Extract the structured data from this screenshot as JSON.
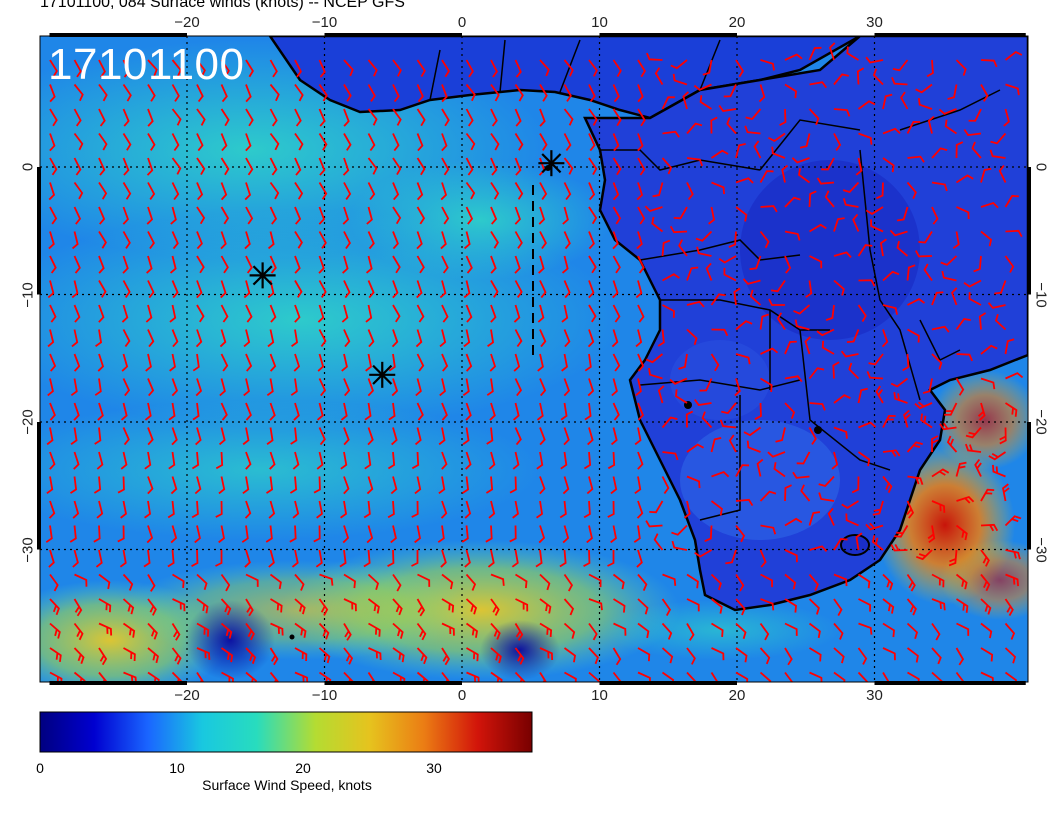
{
  "title": "17101100, 084 Surface winds (knots) -- NCEP GFS",
  "map_stamp": "17101100",
  "axes": {
    "lon_ticks": [
      "−20",
      "−10",
      "0",
      "10",
      "20",
      "30"
    ],
    "lat_ticks": [
      "0",
      "−10",
      "−20",
      "−30"
    ]
  },
  "colorbar": {
    "label": "Surface Wind Speed, knots",
    "ticks": [
      "0",
      "10",
      "20",
      "30"
    ],
    "min": 0,
    "max": 36,
    "colors": [
      "#000080",
      "#0000d0",
      "#1a66ff",
      "#19c8e0",
      "#28dcbe",
      "#b4dc32",
      "#e6c31e",
      "#eb7d14",
      "#d2140a",
      "#780000"
    ]
  },
  "markers": [
    {
      "name": "asterisk-marker",
      "lon": 6.5,
      "lat": 0.3
    },
    {
      "name": "asterisk-marker",
      "lon": -14.5,
      "lat": -8.5
    },
    {
      "name": "asterisk-marker",
      "lon": -5.8,
      "lat": -16.3
    }
  ],
  "map_extent": {
    "lon": [
      -30,
      41
    ],
    "lat": [
      -40,
      9.5
    ]
  },
  "colors": {
    "barb": "#ff0000",
    "coast": "#000000",
    "ocean_base": "#1e7ae6"
  }
}
